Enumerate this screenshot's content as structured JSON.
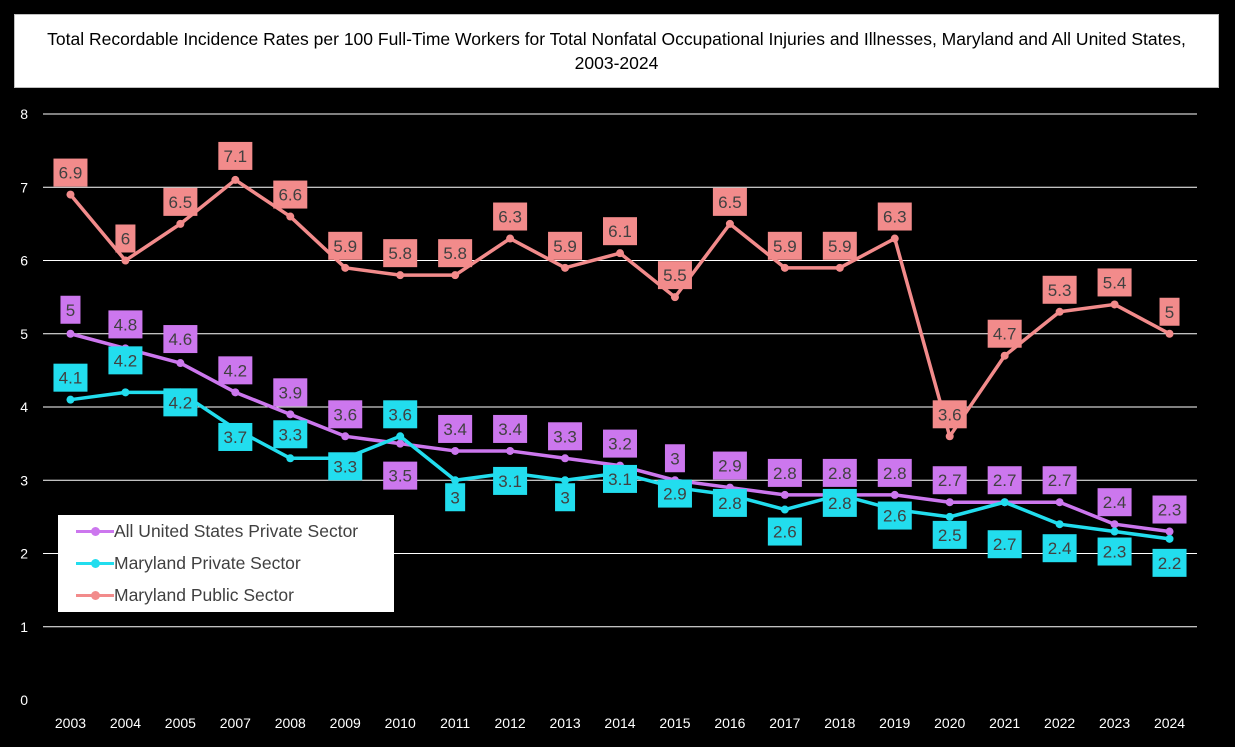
{
  "chart_data": {
    "type": "line",
    "title": "Total Recordable Incidence Rates per 100 Full-Time Workers for Total Nonfatal Occupational Injuries and Illnesses, Maryland and All United States, 2003-2024",
    "categories": [
      "2003",
      "2004",
      "2005",
      "2007",
      "2008",
      "2009",
      "2010",
      "2011",
      "2012",
      "2013",
      "2014",
      "2015",
      "2016",
      "2017",
      "2018",
      "2019",
      "2020",
      "2021",
      "2022",
      "2023",
      "2024"
    ],
    "ylim": [
      0,
      8
    ],
    "yticks": [
      0,
      1,
      2,
      3,
      4,
      5,
      6,
      7,
      8
    ],
    "grid": "horizontal",
    "legend_position": "bottom-left",
    "series": [
      {
        "name": "All United States Private Sector",
        "color": "#cc77ee",
        "values": [
          5,
          4.8,
          4.6,
          4.2,
          3.9,
          3.6,
          3.5,
          3.4,
          3.4,
          3.3,
          3.2,
          3,
          2.9,
          2.8,
          2.8,
          2.8,
          2.7,
          2.7,
          2.7,
          2.4,
          2.3
        ]
      },
      {
        "name": "Maryland Private Sector",
        "color": "#22ddee",
        "values": [
          4.1,
          4.2,
          4.2,
          3.7,
          3.3,
          3.3,
          3.6,
          3,
          3.1,
          3,
          3.1,
          2.9,
          2.8,
          2.6,
          2.8,
          2.6,
          2.5,
          2.7,
          2.4,
          2.3,
          2.2
        ]
      },
      {
        "name": "Maryland Public Sector",
        "color": "#f28b8b",
        "values": [
          6.9,
          6,
          6.5,
          7.1,
          6.6,
          5.9,
          5.8,
          5.8,
          6.3,
          5.9,
          6.1,
          5.5,
          6.5,
          5.9,
          5.9,
          6.3,
          3.6,
          4.7,
          5.3,
          5.4,
          5
        ]
      }
    ]
  }
}
